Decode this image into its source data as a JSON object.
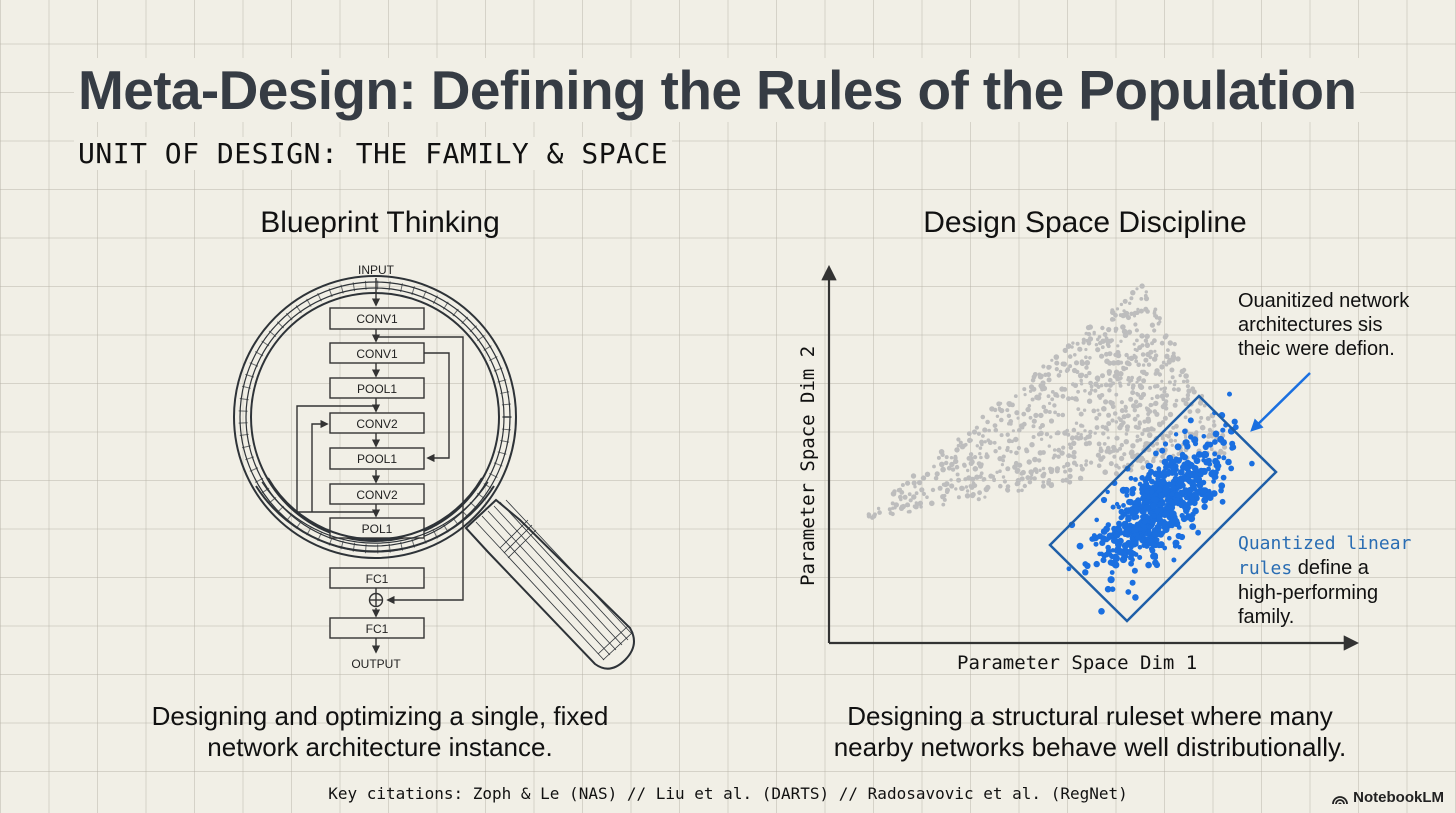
{
  "header": {
    "title": "Meta-Design: Defining the Rules of the Population",
    "subtitle": "UNIT OF DESIGN: THE FAMILY & SPACE"
  },
  "left_panel": {
    "heading": "Blueprint Thinking",
    "diagram": {
      "input_label": "INPUT",
      "output_label": "OUTPUT",
      "layers": [
        "CONV1",
        "CONV1",
        "POOL1",
        "CONV2",
        "POOL1",
        "CONV2",
        "POL1",
        "FC1",
        "FC1"
      ],
      "icon": "magnifying-glass-icon"
    },
    "caption_line1": "Designing and optimizing a single, fixed",
    "caption_line2": "network architecture instance."
  },
  "right_panel": {
    "heading": "Design Space Discipline",
    "x_axis_label": "Parameter Space Dim 1",
    "y_axis_label": "Parameter Space Dim 2",
    "annotation_top": [
      "Ouanitized network",
      "architectures sis",
      "theic were defion."
    ],
    "annotation_bottom": {
      "highlight_1": "Quantized linear",
      "highlight_2": "rules",
      "rest_1": " define a",
      "rest_2": "high-performing",
      "rest_3": "family."
    },
    "caption_line1": "Designing a structural ruleset where many",
    "caption_line2": "nearby networks behave well distributionally.",
    "colors": {
      "background_points": "#bdbdbd",
      "family_points": "#1a6fe0",
      "box": "#1f5fa8"
    }
  },
  "footer": {
    "citations": "Key citations: Zoph & Le (NAS) // Liu et al. (DARTS) // Radosavovic et al. (RegNet)",
    "brand": "NotebookLM"
  },
  "colors": {
    "background": "#f1efe6",
    "title": "#363c44",
    "accent_blue": "#1a6fe0"
  }
}
